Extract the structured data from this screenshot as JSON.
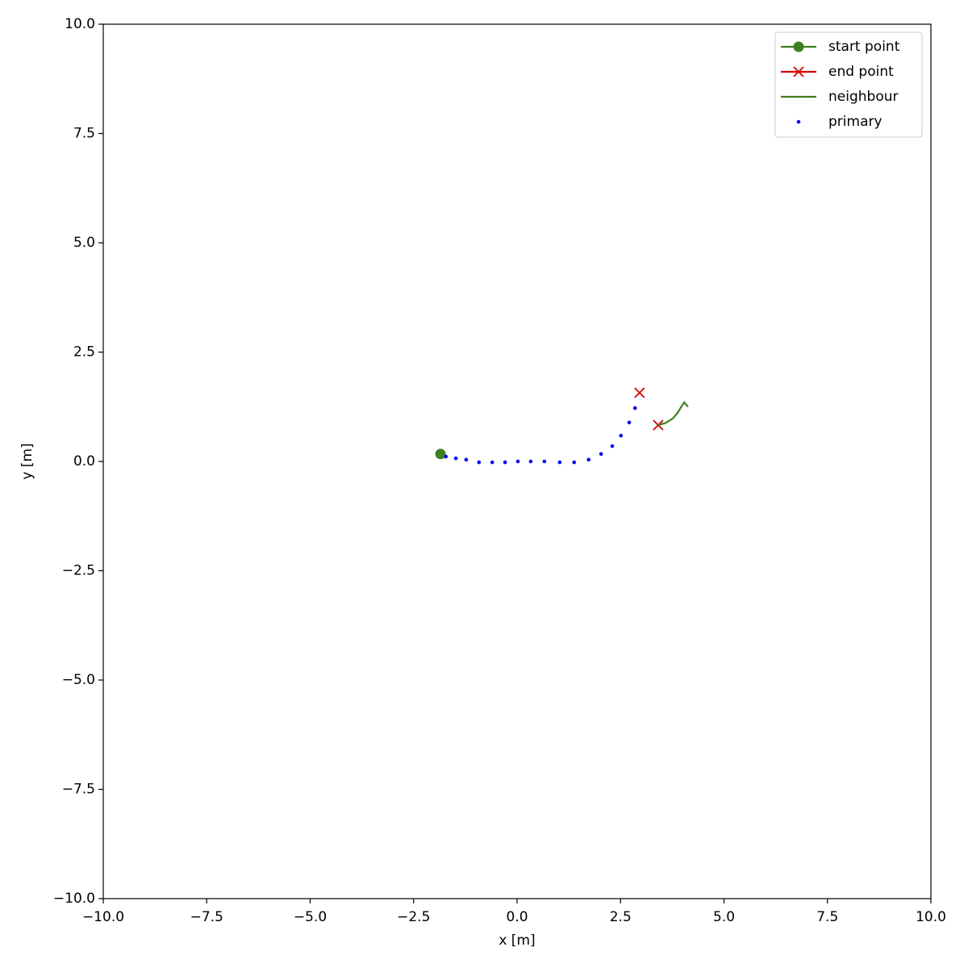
{
  "chart_data": {
    "type": "scatter",
    "xlabel": "x [m]",
    "ylabel": "y [m]",
    "xlim": [
      -10,
      10
    ],
    "ylim": [
      -10,
      10
    ],
    "xticks": [
      {
        "value": -10,
        "label": "−10.0"
      },
      {
        "value": -7.5,
        "label": "−7.5"
      },
      {
        "value": -5,
        "label": "−5.0"
      },
      {
        "value": -2.5,
        "label": "−2.5"
      },
      {
        "value": 0,
        "label": "0.0"
      },
      {
        "value": 2.5,
        "label": "2.5"
      },
      {
        "value": 5,
        "label": "5.0"
      },
      {
        "value": 7.5,
        "label": "7.5"
      },
      {
        "value": 10,
        "label": "10.0"
      }
    ],
    "yticks": [
      {
        "value": -10,
        "label": "−10.0"
      },
      {
        "value": -7.5,
        "label": "−7.5"
      },
      {
        "value": -5,
        "label": "−5.0"
      },
      {
        "value": -2.5,
        "label": "−2.5"
      },
      {
        "value": 0,
        "label": "0.0"
      },
      {
        "value": 2.5,
        "label": "2.5"
      },
      {
        "value": 5,
        "label": "5.0"
      },
      {
        "value": 7.5,
        "label": "7.5"
      },
      {
        "value": 10,
        "label": "10.0"
      }
    ],
    "grid": false,
    "legend": "upper right",
    "series": [
      {
        "name": "start point",
        "color": "#3f7f1f",
        "style": "circle",
        "x": [
          -1.85
        ],
        "values": [
          0.17
        ]
      },
      {
        "name": "end point",
        "color": "#d40000",
        "style": "cross",
        "x": [
          2.96,
          3.41
        ],
        "values": [
          1.57,
          0.83
        ]
      },
      {
        "name": "neighbour",
        "color": "#3f7f1f",
        "style": "line",
        "x": [
          3.41,
          3.59,
          3.76,
          3.88,
          3.98,
          4.04,
          4.13
        ],
        "values": [
          0.83,
          0.88,
          0.98,
          1.11,
          1.27,
          1.35,
          1.25
        ]
      },
      {
        "name": "primary",
        "color": "#0000ee",
        "style": "dot",
        "x": [
          -1.72,
          -1.48,
          -1.23,
          -0.92,
          -0.6,
          -0.29,
          0.02,
          0.33,
          0.66,
          1.03,
          1.38,
          1.73,
          2.03,
          2.3,
          2.51,
          2.71,
          2.85
        ],
        "values": [
          0.11,
          0.07,
          0.04,
          -0.02,
          -0.02,
          -0.02,
          0,
          0,
          0,
          -0.02,
          -0.02,
          0.04,
          0.17,
          0.35,
          0.59,
          0.89,
          1.22
        ]
      }
    ]
  }
}
